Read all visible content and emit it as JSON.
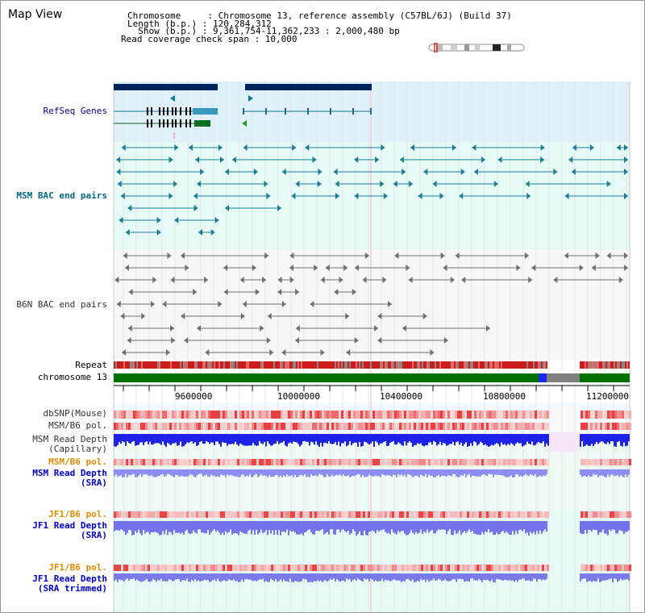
{
  "app": {
    "title": "Map View"
  },
  "chromosome_info": {
    "line1": "Chromosome     : Chromosome 13, reference assembly (C57BL/6J) (Build 37)",
    "line2": "Length (b.p.) : 120,284,312",
    "line3": "  Show (b.p.) : 9,361,754-11,362,233 : 2,000,480 bp",
    "line4": "Read coverage check span : 10,000"
  },
  "tracks": {
    "refseq": "RefSeq Genes",
    "msm_bac": "MSM BAC end pairs",
    "b6n_bac": "B6N BAC end pairs",
    "repeat": "Repeat",
    "chromosome": "chromosome 13",
    "dbsnp": "dbSNP(Mouse)",
    "msm_b6_pol_1": "MSM/B6 pol.",
    "msm_read_depth_cap_1": "MSM Read Depth",
    "msm_read_depth_cap_2": "(Capillary)",
    "msm_b6_pol_2": "MSM/B6 pol.",
    "msm_read_depth_sra_1": "MSM Read Depth",
    "msm_read_depth_sra_2": "(SRA)",
    "jf1_b6_pol_1": "JF1/B6 pol.",
    "jf1_read_depth_sra_1": "JF1 Read Depth",
    "jf1_read_depth_sra_2": "(SRA)",
    "jf1_b6_pol_2": "JF1/B6 pol.",
    "jf1_read_depth_trim_1": "JF1 Read Depth",
    "jf1_read_depth_trim_2": "(SRA trimmed)"
  },
  "axis": {
    "ticks": [
      "9600000",
      "10000000",
      "10400000",
      "10800000",
      "11200000"
    ]
  },
  "colors": {
    "refseq_bg": "#dff1fb",
    "bac_bg": "#e6fbf8",
    "b6n_bg": "#f7f7fb",
    "label_navy": "#00008b",
    "label_teal": "#006a80",
    "label_orange": "#e08a00",
    "label_blue": "#0000cc",
    "chrom_green": "#007000"
  }
}
